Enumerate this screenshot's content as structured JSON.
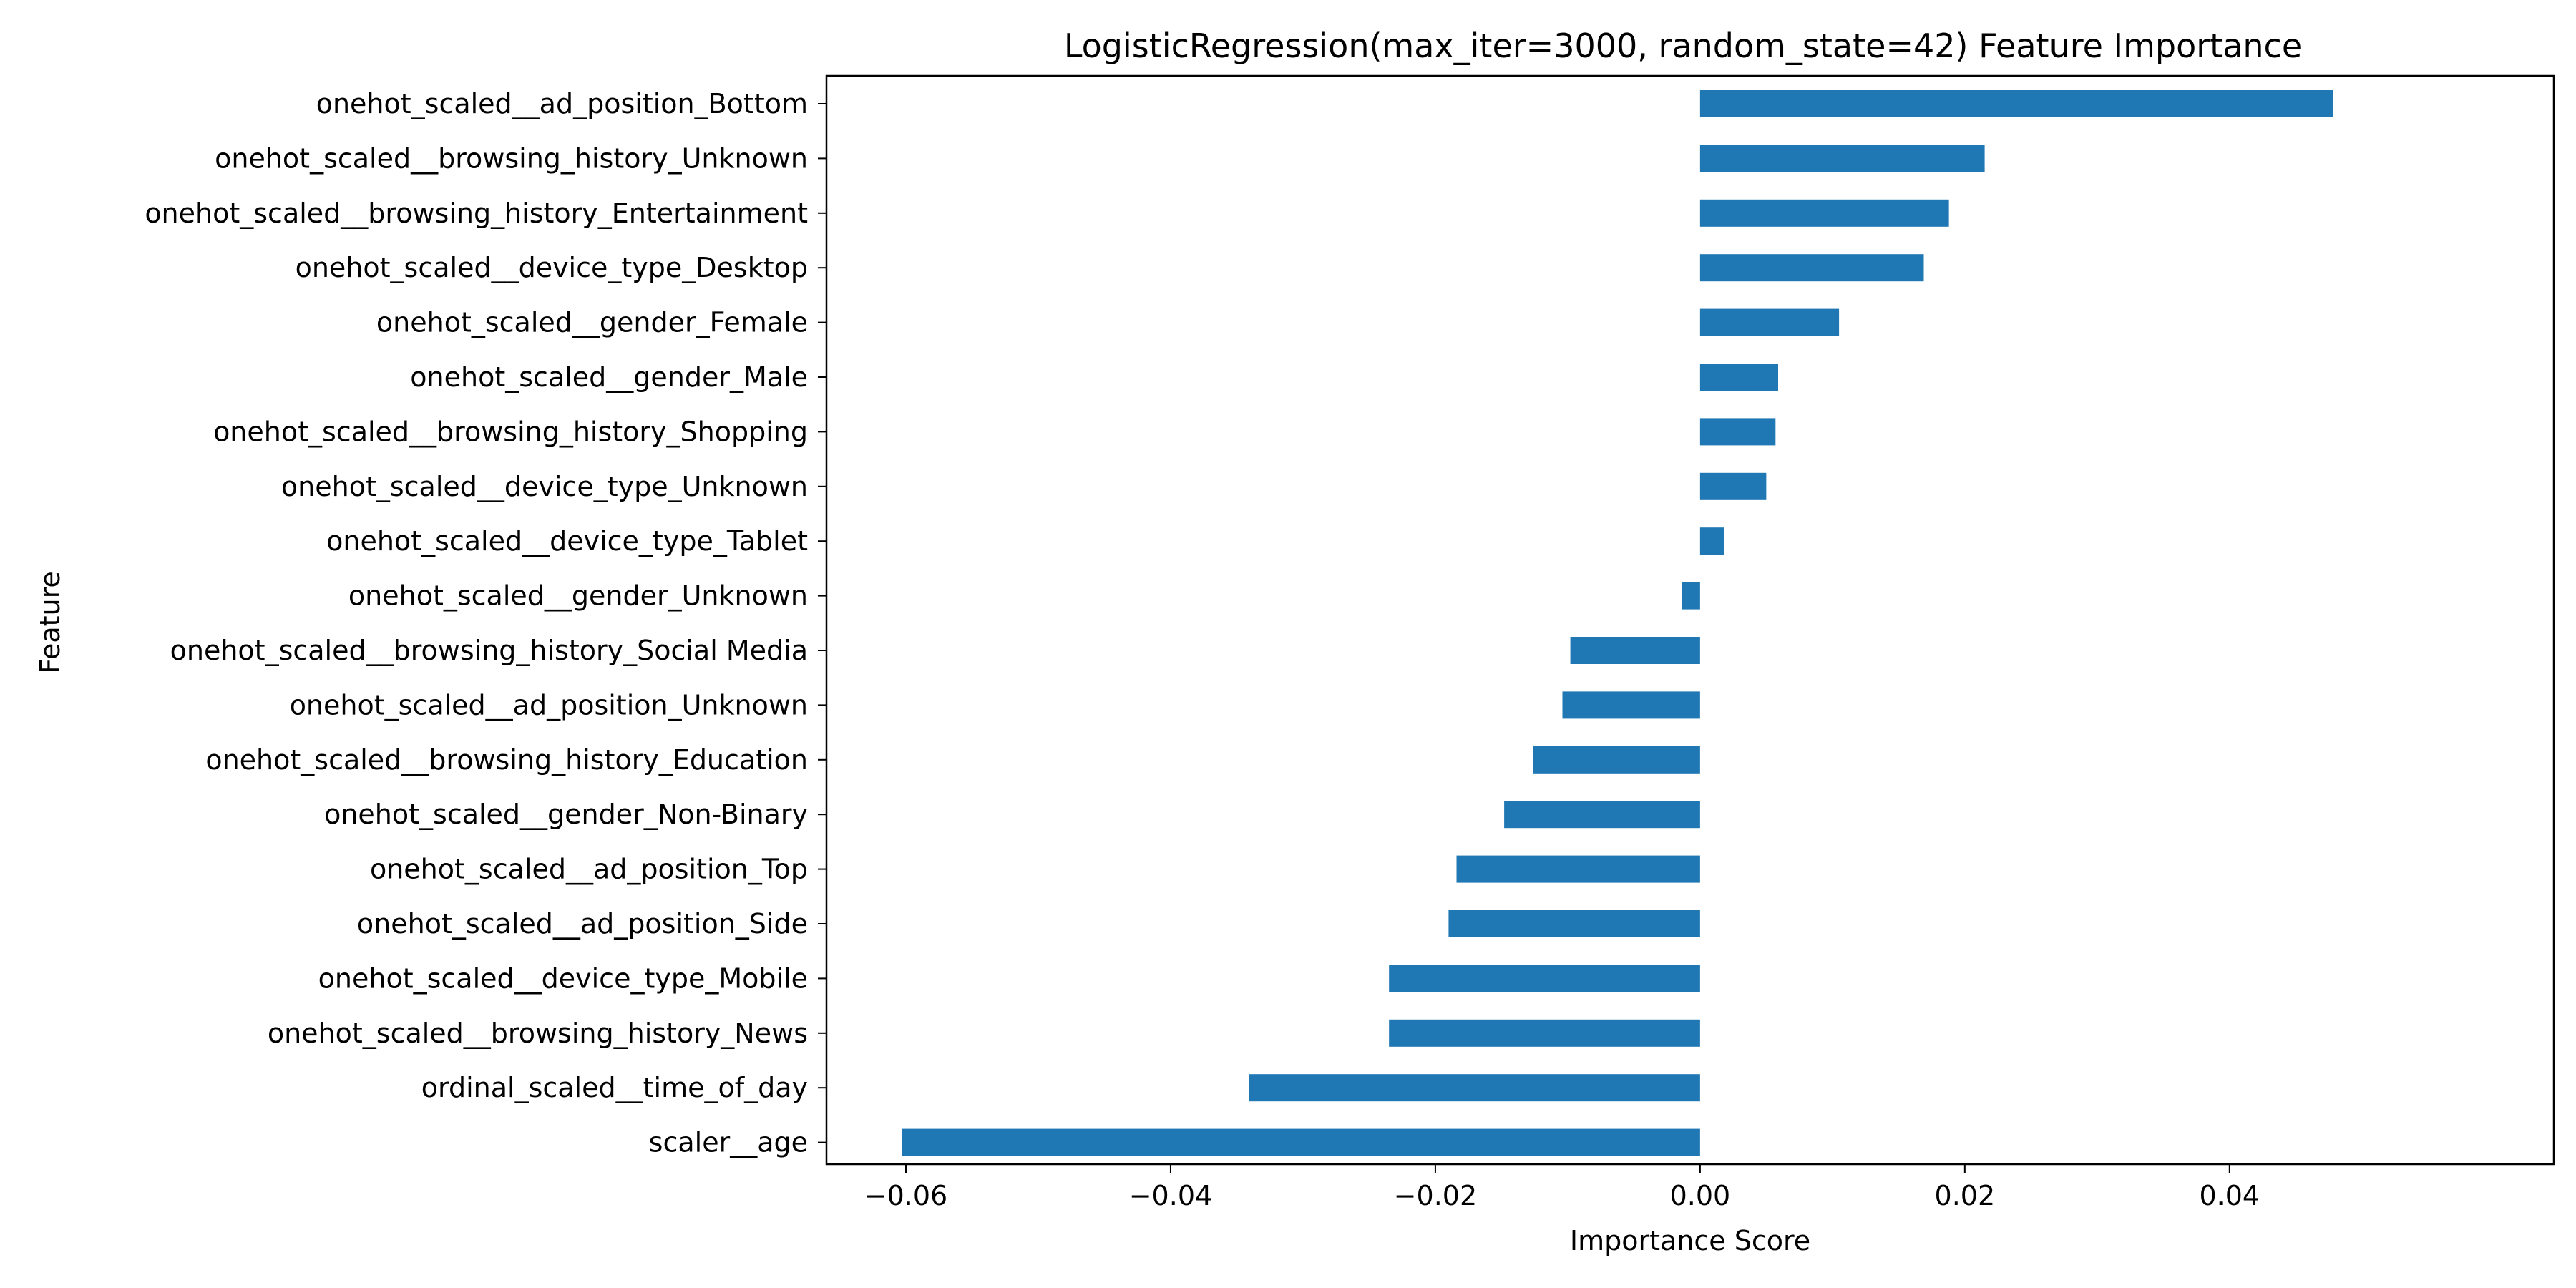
{
  "chart_data": {
    "type": "bar",
    "orientation": "horizontal",
    "title": "LogisticRegression(max_iter=3000, random_state=42) Feature Importance",
    "xlabel": "Importance Score",
    "ylabel": "Feature",
    "xlim": [
      -0.066,
      0.0645
    ],
    "xticks": [
      -0.06,
      -0.04,
      -0.02,
      0.0,
      0.02,
      0.04
    ],
    "xtick_labels": [
      "−0.06",
      "−0.04",
      "−0.02",
      "0.00",
      "0.02",
      "0.04"
    ],
    "grid": false,
    "bar_color": "#1f77b4",
    "categories": [
      "onehot_scaled__ad_position_Bottom",
      "onehot_scaled__browsing_history_Unknown",
      "onehot_scaled__browsing_history_Entertainment",
      "onehot_scaled__device_type_Desktop",
      "onehot_scaled__gender_Female",
      "onehot_scaled__gender_Male",
      "onehot_scaled__browsing_history_Shopping",
      "onehot_scaled__device_type_Unknown",
      "onehot_scaled__device_type_Tablet",
      "onehot_scaled__gender_Unknown",
      "onehot_scaled__browsing_history_Social Media",
      "onehot_scaled__ad_position_Unknown",
      "onehot_scaled__browsing_history_Education",
      "onehot_scaled__gender_Non-Binary",
      "onehot_scaled__ad_position_Top",
      "onehot_scaled__ad_position_Side",
      "onehot_scaled__device_type_Mobile",
      "onehot_scaled__browsing_history_News",
      "ordinal_scaled__time_of_day",
      "scaler__age"
    ],
    "values": [
      0.0478,
      0.0215,
      0.0188,
      0.0169,
      0.0105,
      0.0059,
      0.0057,
      0.005,
      0.0018,
      -0.0014,
      -0.0098,
      -0.0104,
      -0.0126,
      -0.0148,
      -0.0184,
      -0.019,
      -0.0235,
      -0.0235,
      -0.0341,
      -0.0603
    ]
  }
}
